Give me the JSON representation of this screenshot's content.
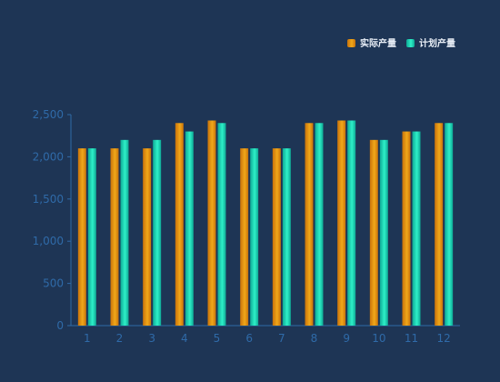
{
  "chart_data": {
    "type": "bar",
    "categories": [
      "1",
      "2",
      "3",
      "4",
      "5",
      "6",
      "7",
      "8",
      "9",
      "10",
      "11",
      "12"
    ],
    "series": [
      {
        "name": "实际产量",
        "values": [
          2100,
          2100,
          2100,
          2400,
          2430,
          2100,
          2100,
          2400,
          2430,
          2200,
          2300,
          2400
        ],
        "color_top": "#f0a81a",
        "color_bottom": "#c9720a"
      },
      {
        "name": "计划产量",
        "values": [
          2100,
          2200,
          2200,
          2300,
          2400,
          2100,
          2100,
          2400,
          2430,
          2200,
          2300,
          2400
        ],
        "color_top": "#2ef0c8",
        "color_bottom": "#0ea995"
      }
    ],
    "ylim": [
      0,
      2500
    ],
    "yticks": [
      0,
      500,
      1000,
      1500,
      2000,
      2500
    ],
    "ytick_labels": [
      "0",
      "500",
      "1,000",
      "1,500",
      "2,000",
      "2,500"
    ],
    "grid": false,
    "legend_position": "top-right",
    "axis_color": "#2f6aa8"
  }
}
